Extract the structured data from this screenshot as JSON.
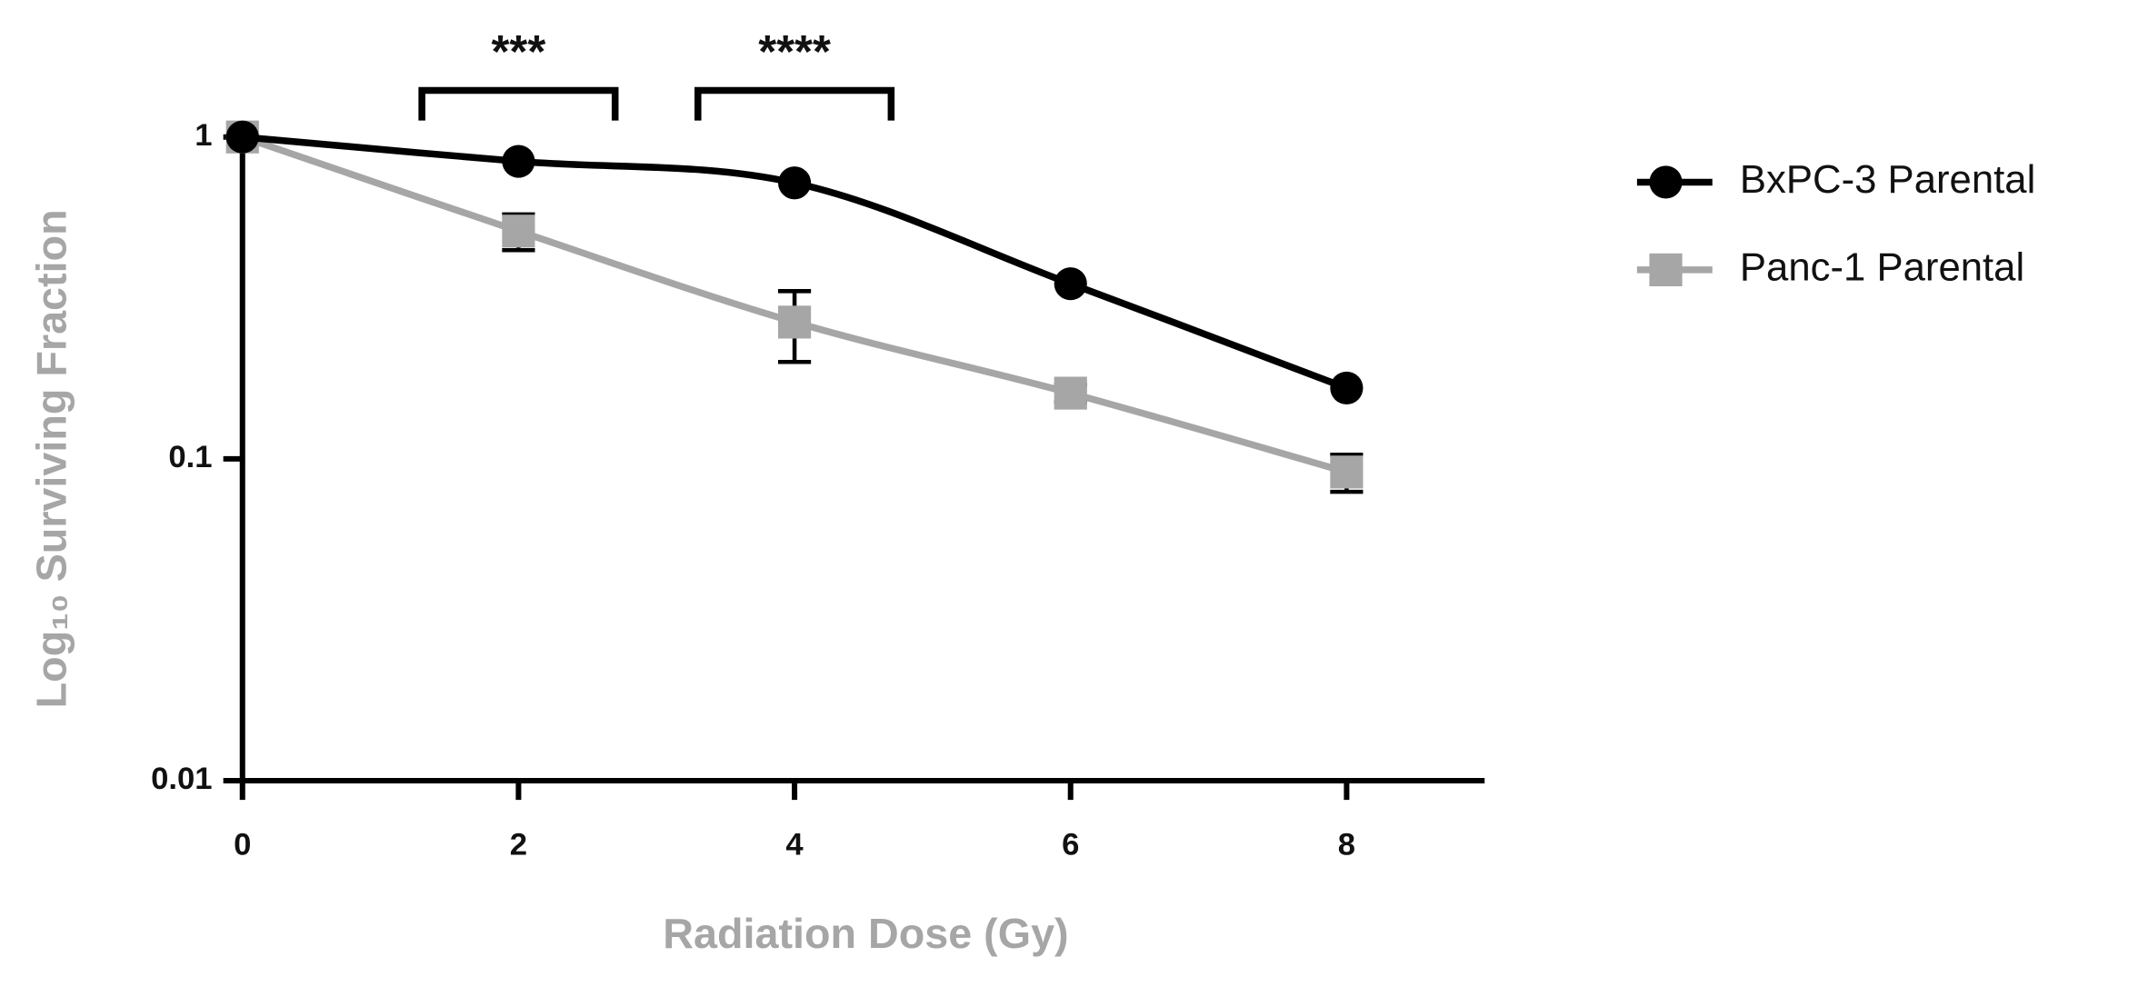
{
  "chart_data": {
    "type": "line",
    "x_label": "Radiation Dose (Gy)",
    "y_label": "Log₁₀ Surviving Fraction",
    "x": [
      0,
      2,
      4,
      6,
      8
    ],
    "series": [
      {
        "name": "BxPC-3 Parental",
        "color": "#000000",
        "marker": "circle",
        "values": [
          1.0,
          0.84,
          0.72,
          0.35,
          0.166
        ]
      },
      {
        "name": "Panc-1 Parental",
        "color": "#a6a6a6",
        "marker": "square",
        "values": [
          1.0,
          0.51,
          0.266,
          0.16,
          0.091
        ],
        "errors": [
          0,
          0.065,
          0.066,
          0.01,
          0.012
        ]
      }
    ],
    "xlim": [
      0,
      9
    ],
    "xticks": [
      0,
      2,
      4,
      6,
      8
    ],
    "ylim": [
      0.01,
      1.1
    ],
    "yticks": [
      0.01,
      0.1,
      1
    ],
    "y_scale": "log",
    "annotations": [
      {
        "text": "***",
        "x": 2
      },
      {
        "text": "****",
        "x": 4
      }
    ],
    "legend": "right"
  }
}
